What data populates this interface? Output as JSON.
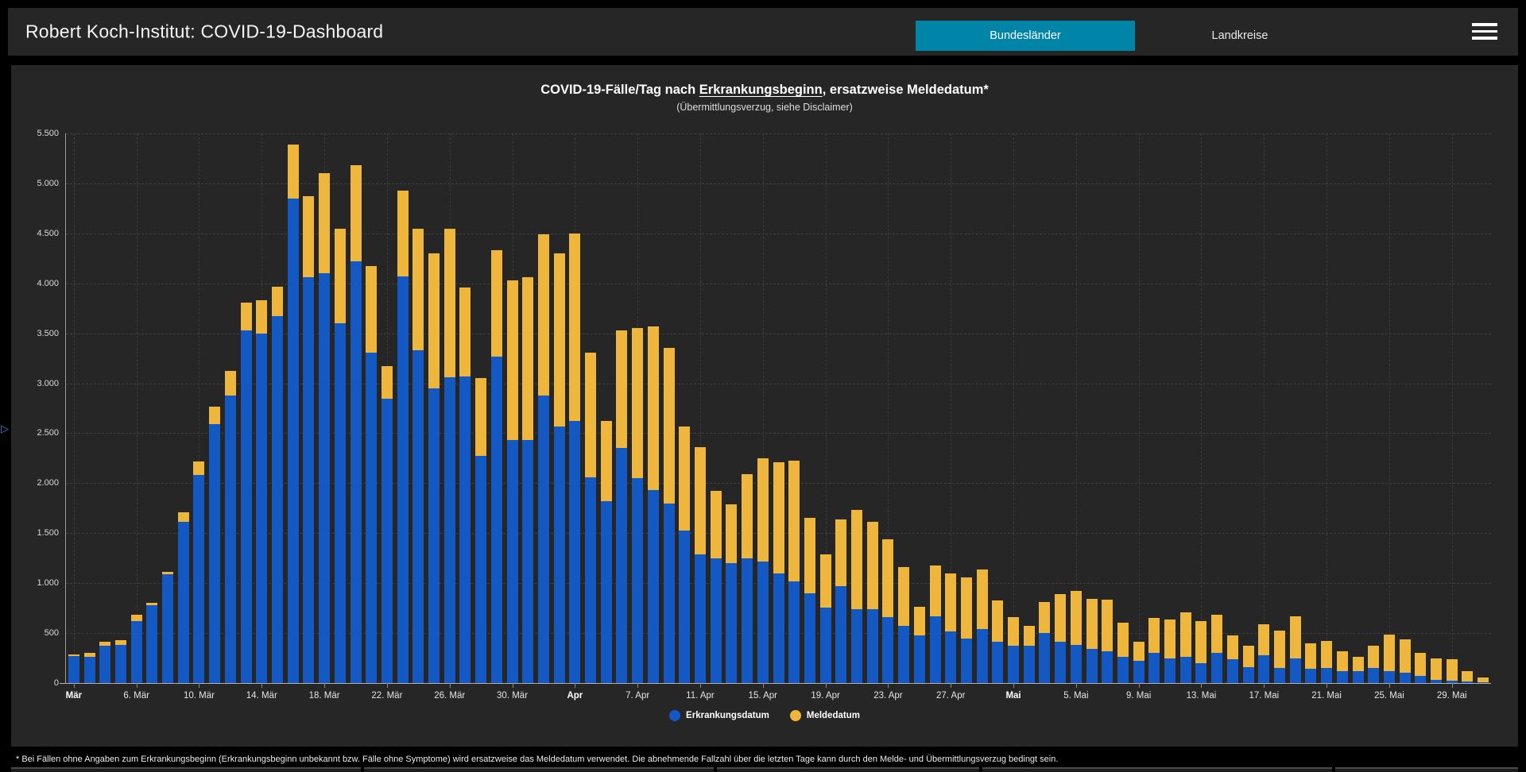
{
  "header": {
    "title": "Robert Koch-Institut: COVID-19-Dashboard",
    "button_active": "Bundesländer",
    "button_inactive": "Landkreise",
    "active_button_color": "#0084a8",
    "menu_icon": "hamburger-icon"
  },
  "chart": {
    "title_pre": "COVID-19-Fälle/Tag nach ",
    "title_underlined": "Erkrankungsbeginn",
    "title_post": ", ersatzweise Meldedatum*",
    "subtitle": "(Übermittlungsverzug, siehe Disclaimer)"
  },
  "chart_data": {
    "type": "bar",
    "stacked": true,
    "title": "COVID-19-Fälle/Tag nach Erkrankungsbeginn, ersatzweise Meldedatum*",
    "subtitle": "(Übermittlungsverzug, siehe Disclaimer)",
    "ylim": [
      0,
      5500
    ],
    "ytick_step": 500,
    "grid": true,
    "legend_position": "bottom",
    "x_tick_every": 4,
    "x_tick_labels": [
      "Mär",
      "6. Mär",
      "10. Mär",
      "14. Mär",
      "18. Mär",
      "22. Mär",
      "26. Mär",
      "30. Mär",
      "Apr",
      "7. Apr",
      "11. Apr",
      "15. Apr",
      "19. Apr",
      "23. Apr",
      "27. Apr",
      "Mai",
      "5. Mai",
      "9. Mai",
      "13. Mai",
      "17. Mai",
      "21. Mai",
      "25. Mai",
      "29. Mai"
    ],
    "x_tick_bold": [
      "Mär",
      "Apr",
      "Mai"
    ],
    "categories": [
      "2. Mär",
      "3. Mär",
      "4. Mär",
      "5. Mär",
      "6. Mär",
      "7. Mär",
      "8. Mär",
      "9. Mär",
      "10. Mär",
      "11. Mär",
      "12. Mär",
      "13. Mär",
      "14. Mär",
      "15. Mär",
      "16. Mär",
      "17. Mär",
      "18. Mär",
      "19. Mär",
      "20. Mär",
      "21. Mär",
      "22. Mär",
      "23. Mär",
      "24. Mär",
      "25. Mär",
      "26. Mär",
      "27. Mär",
      "28. Mär",
      "29. Mär",
      "30. Mär",
      "31. Mär",
      "1. Apr",
      "2. Apr",
      "3. Apr",
      "4. Apr",
      "5. Apr",
      "6. Apr",
      "7. Apr",
      "8. Apr",
      "9. Apr",
      "10. Apr",
      "11. Apr",
      "12. Apr",
      "13. Apr",
      "14. Apr",
      "15. Apr",
      "16. Apr",
      "17. Apr",
      "18. Apr",
      "19. Apr",
      "20. Apr",
      "21. Apr",
      "22. Apr",
      "23. Apr",
      "24. Apr",
      "25. Apr",
      "26. Apr",
      "27. Apr",
      "28. Apr",
      "29. Apr",
      "30. Apr",
      "1. Mai",
      "2. Mai",
      "3. Mai",
      "4. Mai",
      "5. Mai",
      "6. Mai",
      "7. Mai",
      "8. Mai",
      "9. Mai",
      "10. Mai",
      "11. Mai",
      "12. Mai",
      "13. Mai",
      "14. Mai",
      "15. Mai",
      "16. Mai",
      "17. Mai",
      "18. Mai",
      "19. Mai",
      "20. Mai",
      "21. Mai",
      "22. Mai",
      "23. Mai",
      "24. Mai",
      "25. Mai",
      "26. Mai",
      "27. Mai",
      "28. Mai",
      "29. Mai",
      "30. Mai",
      "31. Mai"
    ],
    "series": [
      {
        "name": "Erkrankungsdatum",
        "color": "#1458c4",
        "values": [
          270,
          260,
          370,
          380,
          620,
          780,
          1090,
          1610,
          2080,
          2590,
          2880,
          3530,
          3500,
          3670,
          4850,
          4060,
          4100,
          3600,
          4220,
          3305,
          2845,
          4070,
          3330,
          2950,
          3060,
          3070,
          2270,
          3270,
          2430,
          2430,
          2880,
          2570,
          2625,
          2060,
          1820,
          2350,
          2050,
          1930,
          1800,
          1530,
          1290,
          1250,
          1200,
          1250,
          1220,
          1100,
          1020,
          900,
          755,
          970,
          740,
          740,
          660,
          570,
          475,
          665,
          515,
          445,
          540,
          410,
          370,
          370,
          500,
          410,
          380,
          345,
          320,
          260,
          220,
          305,
          245,
          260,
          200,
          305,
          240,
          160,
          280,
          155,
          250,
          140,
          150,
          120,
          120,
          150,
          120,
          100,
          75,
          30,
          20,
          15,
          5
        ]
      },
      {
        "name": "Meldedatum",
        "color": "#efb63e",
        "values": [
          15,
          40,
          45,
          50,
          65,
          20,
          20,
          100,
          140,
          180,
          240,
          280,
          330,
          300,
          540,
          810,
          1000,
          945,
          960,
          870,
          325,
          860,
          1220,
          1350,
          1490,
          890,
          780,
          1060,
          1600,
          1630,
          1610,
          1730,
          1875,
          1250,
          800,
          1180,
          1500,
          1635,
          1555,
          1040,
          1070,
          670,
          590,
          840,
          1030,
          1110,
          1205,
          750,
          535,
          670,
          995,
          870,
          780,
          590,
          290,
          515,
          585,
          615,
          600,
          415,
          290,
          200,
          310,
          480,
          545,
          495,
          515,
          345,
          190,
          345,
          390,
          450,
          420,
          380,
          240,
          210,
          310,
          370,
          415,
          255,
          270,
          195,
          140,
          220,
          365,
          335,
          225,
          220,
          215,
          105,
          50
        ]
      }
    ]
  },
  "footer": {
    "disclaimer": "* Bei Fällen ohne Angaben zum Erkrankungsbeginn (Erkrankungsbeginn unbekannt bzw. Fälle ohne Symptome) wird ersatzweise das Meldedatum verwendet. Die abnehmende Fallzahl über die letzten Tage kann durch den Melde- und Übermittlungsverzug bedingt sein."
  }
}
